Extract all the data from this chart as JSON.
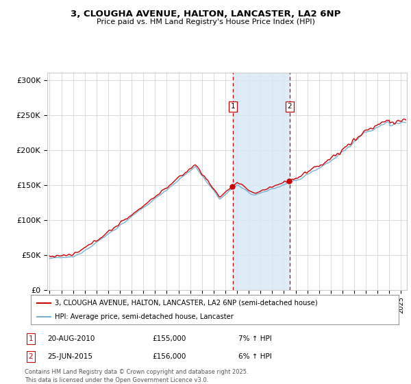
{
  "title_line1": "3, CLOUGHA AVENUE, HALTON, LANCASTER, LA2 6NP",
  "title_line2": "Price paid vs. HM Land Registry's House Price Index (HPI)",
  "ylabel_ticks": [
    "£0",
    "£50K",
    "£100K",
    "£150K",
    "£200K",
    "£250K",
    "£300K"
  ],
  "ytick_vals": [
    0,
    50000,
    100000,
    150000,
    200000,
    250000,
    300000
  ],
  "ylim": [
    0,
    310000
  ],
  "xlim_start": 1994.8,
  "xlim_end": 2025.5,
  "line1_color": "#cc0000",
  "line2_color": "#7ab0d4",
  "shade_color": "#d6e8f5",
  "vline_color": "#cc0000",
  "marker1_x": 2010.63,
  "marker2_x": 2015.48,
  "legend_line1": "3, CLOUGHA AVENUE, HALTON, LANCASTER, LA2 6NP (semi-detached house)",
  "legend_line2": "HPI: Average price, semi-detached house, Lancaster",
  "annotation1_label": "1",
  "annotation1_date": "20-AUG-2010",
  "annotation1_price": "£155,000",
  "annotation1_hpi": "7% ↑ HPI",
  "annotation2_label": "2",
  "annotation2_date": "25-JUN-2015",
  "annotation2_price": "£156,000",
  "annotation2_hpi": "6% ↑ HPI",
  "footer": "Contains HM Land Registry data © Crown copyright and database right 2025.\nThis data is licensed under the Open Government Licence v3.0.",
  "background_color": "#ffffff",
  "plot_bg_color": "#ffffff",
  "grid_color": "#cccccc"
}
